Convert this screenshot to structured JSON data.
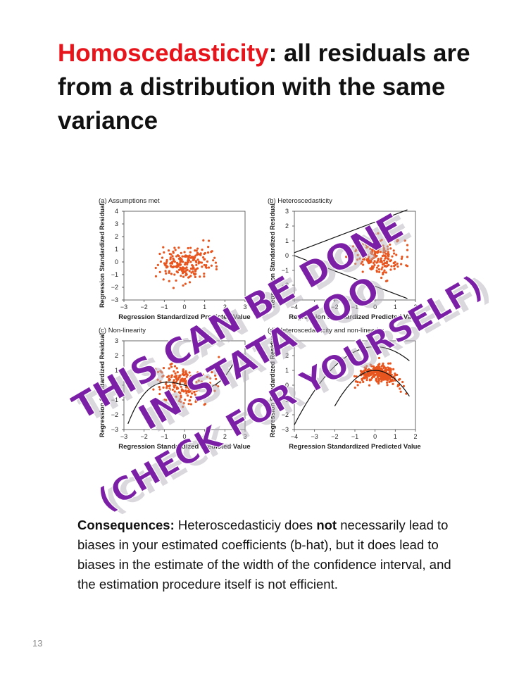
{
  "slide": {
    "title": {
      "highlight": "Homoscedasticity",
      "rest": ": all residuals are from a distribution with the same variance"
    },
    "consequences": {
      "label": "Consequences:",
      "text_before": " Heteroscedasticiy does ",
      "emphasis": "not",
      "text_after": " necessarily lead to biases in your estimated coefficients (b-hat), but it does lead to biases in the estimate of the width of the confidence interval, and the estimation procedure itself is not efficient."
    },
    "page_number": "13",
    "overlay_text": [
      "THIS CAN BE DONE",
      "IN STATA TOO",
      "(CHECK FOR YOURSELF)"
    ],
    "colors": {
      "highlight": "#e8141b",
      "overlay": "#7a1fa6",
      "points": "#e8551f"
    }
  },
  "chart_data": [
    {
      "type": "scatter",
      "title": "(a) Assumptions met",
      "xlabel": "Regression Standardized Predicted Value",
      "ylabel": "Regression Standardized Residual",
      "xlim": [
        -3,
        3
      ],
      "ylim": [
        -3,
        4
      ],
      "xticks": [
        "−3",
        "−2",
        "−1",
        "0",
        "1",
        "2",
        "3"
      ],
      "yticks": [
        "−3",
        "−2",
        "−1",
        "0",
        "1",
        "2",
        "3",
        "4"
      ],
      "pattern": "constant variance cloud centered at 0"
    },
    {
      "type": "scatter",
      "title": "(b) Heteroscedasticity",
      "xlabel": "Regression Standardized Predicted Value",
      "ylabel": "Regression Standardized Residual",
      "xlim": [
        -4,
        2
      ],
      "ylim": [
        -3,
        3
      ],
      "xticks": [
        "−4",
        "−3",
        "−2",
        "−1",
        "0",
        "1",
        "2"
      ],
      "yticks": [
        "−3",
        "−2",
        "−1",
        "0",
        "1",
        "2",
        "3"
      ],
      "pattern": "funnel: spread increases with predicted value"
    },
    {
      "type": "scatter",
      "title": "(c) Non-linearity",
      "xlabel": "Regression Standardized Predicted Value",
      "ylabel": "Regression Standardized Residual",
      "xlim": [
        -3,
        3
      ],
      "ylim": [
        -3,
        3
      ],
      "xticks": [
        "−3",
        "−2",
        "−1",
        "0",
        "1",
        "2",
        "3"
      ],
      "yticks": [
        "−3",
        "−2",
        "−1",
        "0",
        "1",
        "2",
        "3"
      ],
      "pattern": "cubic-shaped residual trend"
    },
    {
      "type": "scatter",
      "title": "(d) Heteroscedasticity and non-linearity",
      "xlabel": "Regression Standardized Predicted Value",
      "ylabel": "Regression Standardized Residual",
      "xlim": [
        -4,
        2
      ],
      "ylim": [
        -3,
        3
      ],
      "xticks": [
        "−4",
        "−3",
        "−2",
        "−1",
        "0",
        "1",
        "2"
      ],
      "yticks": [
        "−3",
        "−2",
        "−1",
        "0",
        "1",
        "2",
        "3"
      ],
      "pattern": "inverted-U trend with widening spread"
    }
  ]
}
